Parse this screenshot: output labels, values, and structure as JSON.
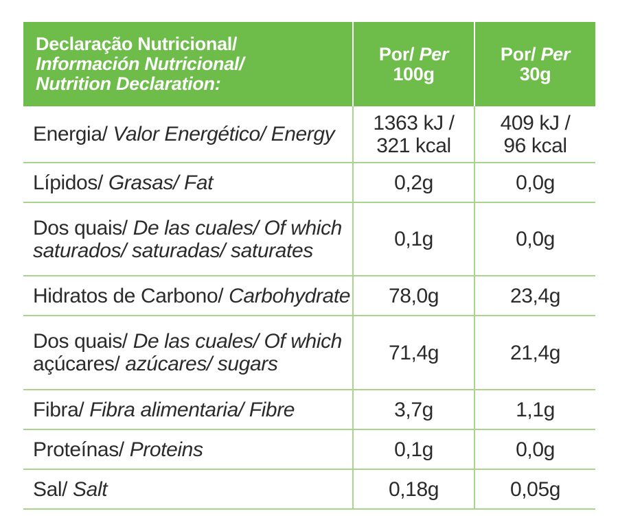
{
  "header": {
    "label_pt": "Declaração Nutricional/",
    "label_es": "Información Nutricional/",
    "label_en": "Nutrition Declaration:",
    "col1_line1_pt": "Por/",
    "col1_line1_en": "Per",
    "col1_line2": "100g",
    "col2_line1_pt": "Por/",
    "col2_line1_en": "Per",
    "col2_line2": "30g"
  },
  "rows": [
    {
      "label_pt": "Energia/",
      "label_es_en": "Valor Energético/ Energy",
      "per100_line1": "1363 kJ /",
      "per100_line2": "321 kcal",
      "per30_line1": "409 kJ /",
      "per30_line2": "96 kcal"
    },
    {
      "label_pt": "Lípidos/",
      "label_es_en": "Grasas/ Fat",
      "per100": "0,2g",
      "per30": "0,0g"
    },
    {
      "label_pt": "Dos quais/",
      "label_es_en_1": "De las cuales/ Of which",
      "label_pt_2": "saturados/",
      "label_es_en_2": "saturadas/ saturates",
      "per100": "0,1g",
      "per30": "0,0g"
    },
    {
      "label_pt": "Hidratos de Carbono/",
      "label_es_en": "Carbohydrate",
      "per100": "78,0g",
      "per30": "23,4g"
    },
    {
      "label_pt": "Dos quais/",
      "label_es_en_1": "De las cuales/ Of which",
      "label_pt_2": "açúcares/",
      "label_es_en_2": "azúcares/ sugars",
      "per100": "71,4g",
      "per30": "21,4g"
    },
    {
      "label_pt": "Fibra/",
      "label_es_en": "Fibra alimentaria/ Fibre",
      "per100": "3,7g",
      "per30": "1,1g"
    },
    {
      "label_pt": "Proteínas/",
      "label_es_en": "Proteins",
      "per100": "0,1g",
      "per30": "0,0g"
    },
    {
      "label_pt": "Sal/",
      "label_es_en": "Salt",
      "per100": "0,18g",
      "per30": "0,05g"
    }
  ],
  "colors": {
    "header_green": "#6ebd4a",
    "grid_green": "#a8d58e",
    "text": "#2b2b2b"
  }
}
